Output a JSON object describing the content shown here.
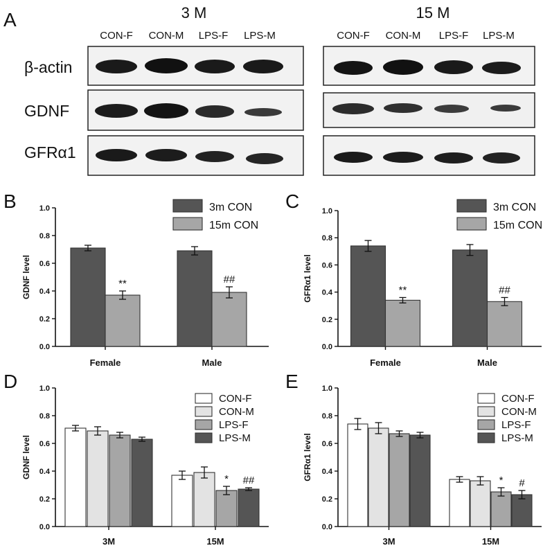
{
  "panel_a": {
    "letter": "A",
    "groups": [
      {
        "title": "3 M",
        "lanes": [
          "CON-F",
          "CON-M",
          "LPS-F",
          "LPS-M"
        ]
      },
      {
        "title": "15 M",
        "lanes": [
          "CON-F",
          "CON-M",
          "LPS-F",
          "LPS-M"
        ]
      }
    ],
    "rows": [
      "β-actin",
      "GDNF",
      "GFRα1"
    ]
  },
  "chart_data": [
    {
      "panel": "B",
      "type": "bar",
      "ylabel": "GDNF level",
      "ylim": [
        0,
        1.0
      ],
      "yticks": [
        "0.0",
        "0.2",
        "0.4",
        "0.6",
        "0.8",
        "1.0"
      ],
      "categories": [
        "Female",
        "Male"
      ],
      "series": [
        {
          "name": "3m CON",
          "color": "#555555",
          "values": [
            0.71,
            0.69
          ],
          "errors": [
            0.02,
            0.03
          ]
        },
        {
          "name": "15m CON",
          "color": "#a6a6a6",
          "values": [
            0.37,
            0.39
          ],
          "errors": [
            0.03,
            0.04
          ]
        }
      ],
      "annotations": [
        {
          "text": "**",
          "series": 1,
          "category": 0
        },
        {
          "text": "##",
          "series": 1,
          "category": 1
        }
      ],
      "legend": "top-right"
    },
    {
      "panel": "C",
      "type": "bar",
      "ylabel": "GFRα1 level",
      "ylim": [
        0,
        1.0
      ],
      "yticks": [
        "0.0",
        "0.2",
        "0.4",
        "0.6",
        "0.8",
        "1.0"
      ],
      "categories": [
        "Female",
        "Male"
      ],
      "series": [
        {
          "name": "3m CON",
          "color": "#555555",
          "values": [
            0.74,
            0.71
          ],
          "errors": [
            0.04,
            0.04
          ]
        },
        {
          "name": "15m CON",
          "color": "#a6a6a6",
          "values": [
            0.34,
            0.33
          ],
          "errors": [
            0.02,
            0.03
          ]
        }
      ],
      "annotations": [
        {
          "text": "**",
          "series": 1,
          "category": 0
        },
        {
          "text": "##",
          "series": 1,
          "category": 1
        }
      ],
      "legend": "top-right"
    },
    {
      "panel": "D",
      "type": "bar",
      "ylabel": "GDNF level",
      "ylim": [
        0,
        1.0
      ],
      "yticks": [
        "0.0",
        "0.2",
        "0.4",
        "0.6",
        "0.8",
        "1.0"
      ],
      "categories": [
        "3M",
        "15M"
      ],
      "series": [
        {
          "name": "CON-F",
          "color": "#ffffff",
          "values": [
            0.71,
            0.37
          ],
          "errors": [
            0.02,
            0.03
          ]
        },
        {
          "name": "CON-M",
          "color": "#e3e3e3",
          "values": [
            0.69,
            0.39
          ],
          "errors": [
            0.03,
            0.04
          ]
        },
        {
          "name": "LPS-F",
          "color": "#a6a6a6",
          "values": [
            0.66,
            0.26
          ],
          "errors": [
            0.02,
            0.03
          ]
        },
        {
          "name": "LPS-M",
          "color": "#555555",
          "values": [
            0.63,
            0.27
          ],
          "errors": [
            0.015,
            0.01
          ]
        }
      ],
      "annotations": [
        {
          "text": "*",
          "series": 2,
          "category": 1
        },
        {
          "text": "##",
          "series": 3,
          "category": 1
        }
      ],
      "legend": "top-right"
    },
    {
      "panel": "E",
      "type": "bar",
      "ylabel": "GFRα1 level",
      "ylim": [
        0,
        1.0
      ],
      "yticks": [
        "0.0",
        "0.2",
        "0.4",
        "0.6",
        "0.8",
        "1.0"
      ],
      "categories": [
        "3M",
        "15M"
      ],
      "series": [
        {
          "name": "CON-F",
          "color": "#ffffff",
          "values": [
            0.74,
            0.34
          ],
          "errors": [
            0.04,
            0.02
          ]
        },
        {
          "name": "CON-M",
          "color": "#e3e3e3",
          "values": [
            0.71,
            0.33
          ],
          "errors": [
            0.04,
            0.03
          ]
        },
        {
          "name": "LPS-F",
          "color": "#a6a6a6",
          "values": [
            0.67,
            0.25
          ],
          "errors": [
            0.02,
            0.03
          ]
        },
        {
          "name": "LPS-M",
          "color": "#555555",
          "values": [
            0.66,
            0.23
          ],
          "errors": [
            0.02,
            0.03
          ]
        }
      ],
      "annotations": [
        {
          "text": "*",
          "series": 2,
          "category": 1
        },
        {
          "text": "#",
          "series": 3,
          "category": 1
        }
      ],
      "legend": "top-right"
    }
  ]
}
